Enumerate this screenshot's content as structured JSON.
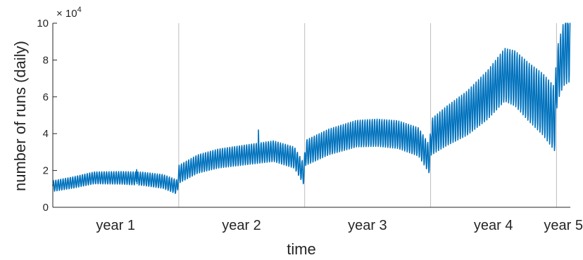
{
  "chart_data": {
    "type": "line",
    "xlabel": "time",
    "ylabel": "number of runs (daily)",
    "y_multiplier": "× 10",
    "y_multiplier_exp": "4",
    "ylim": [
      0,
      100000
    ],
    "y_ticks": [
      0,
      20000,
      40000,
      60000,
      80000,
      100000
    ],
    "y_tick_labels": [
      "0",
      "2",
      "4",
      "6",
      "8",
      "10"
    ],
    "x_unit": "days",
    "xlim": [
      0,
      1500
    ],
    "year_boundaries": [
      365,
      730,
      1095,
      1460
    ],
    "categories": [
      {
        "label": "year 1",
        "center": 182
      },
      {
        "label": "year 2",
        "center": 547
      },
      {
        "label": "year 3",
        "center": 912
      },
      {
        "label": "year 4",
        "center": 1277
      },
      {
        "label": "year 5",
        "center": 1480
      }
    ],
    "grid": false,
    "series": [
      {
        "color": "#0072BD",
        "weekly_oscillation": true,
        "trend": [
          [
            0,
            11500
          ],
          [
            60,
            13500
          ],
          [
            120,
            16000
          ],
          [
            200,
            16000
          ],
          [
            260,
            15500
          ],
          [
            320,
            14000
          ],
          [
            360,
            11000
          ],
          [
            366,
            18000
          ],
          [
            420,
            23500
          ],
          [
            480,
            26500
          ],
          [
            560,
            28500
          ],
          [
            640,
            30500
          ],
          [
            700,
            27000
          ],
          [
            728,
            18000
          ],
          [
            732,
            29500
          ],
          [
            800,
            35500
          ],
          [
            880,
            40000
          ],
          [
            940,
            40500
          ],
          [
            1000,
            39500
          ],
          [
            1060,
            35500
          ],
          [
            1092,
            26000
          ],
          [
            1096,
            38000
          ],
          [
            1140,
            44000
          ],
          [
            1200,
            51000
          ],
          [
            1260,
            61000
          ],
          [
            1310,
            72000
          ],
          [
            1340,
            70000
          ],
          [
            1380,
            62500
          ],
          [
            1420,
            56000
          ],
          [
            1455,
            48000
          ],
          [
            1462,
            72000
          ],
          [
            1480,
            83000
          ],
          [
            1500,
            88000
          ]
        ],
        "amplitude": [
          [
            0,
            3000
          ],
          [
            365,
            4000
          ],
          [
            366,
            5000
          ],
          [
            730,
            6000
          ],
          [
            731,
            7000
          ],
          [
            1095,
            8000
          ],
          [
            1096,
            10000
          ],
          [
            1460,
            18000
          ],
          [
            1461,
            15000
          ],
          [
            1500,
            20000
          ]
        ],
        "spikes": [
          [
            243,
            20500
          ],
          [
            596,
            42000
          ],
          [
            1487,
            100000
          ],
          [
            1494,
            99000
          ]
        ]
      }
    ]
  }
}
